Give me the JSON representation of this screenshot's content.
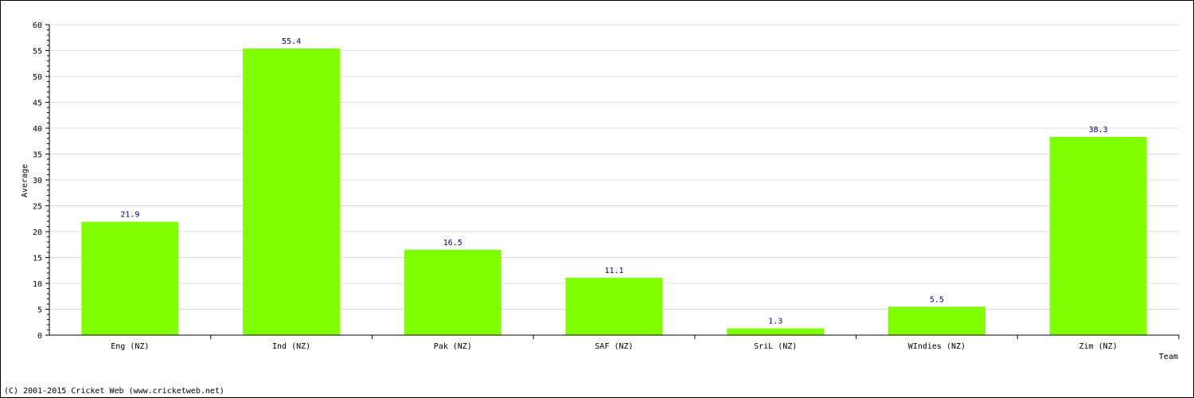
{
  "chart_data": {
    "type": "bar",
    "categories": [
      "Eng (NZ)",
      "Ind (NZ)",
      "Pak (NZ)",
      "SAF (NZ)",
      "SriL (NZ)",
      "WIndies (NZ)",
      "Zim (NZ)"
    ],
    "values": [
      21.9,
      55.4,
      16.5,
      11.1,
      1.3,
      5.5,
      38.3
    ],
    "value_labels": [
      "21.9",
      "55.4",
      "16.5",
      "11.1",
      "1.3",
      "5.5",
      "38.3"
    ],
    "xlabel": "Team",
    "ylabel": "Average",
    "ylim": [
      0,
      60
    ],
    "yticks": [
      0,
      5,
      10,
      15,
      20,
      25,
      30,
      35,
      40,
      45,
      50,
      55,
      60
    ],
    "grid": true,
    "bar_color": "#80ff00",
    "value_label_color": "#000080"
  },
  "footer": {
    "copyright": "(C) 2001-2015 Cricket Web (www.cricketweb.net)"
  }
}
